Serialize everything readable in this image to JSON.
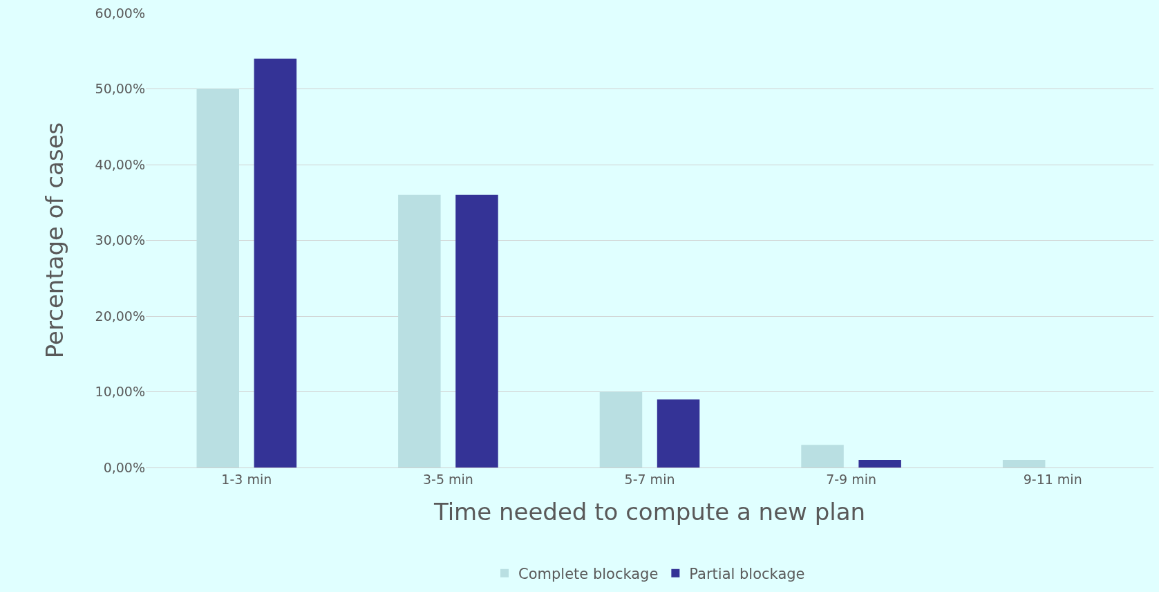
{
  "chart_data": {
    "type": "bar",
    "xlabel": "Time needed to compute a new plan",
    "ylabel": "Percentage of cases",
    "categories": [
      "1-3 min",
      "3-5 min",
      "5-7 min",
      "7-9 min",
      "9-11 min"
    ],
    "series": [
      {
        "name": "Complete blockage",
        "color": "#b9dfe2",
        "values": [
          50,
          36,
          10,
          3,
          1
        ]
      },
      {
        "name": "Partial blockage",
        "color": "#343396",
        "values": [
          54,
          36,
          9,
          1,
          null
        ]
      }
    ],
    "ylim": [
      0,
      60
    ],
    "yticks": [
      {
        "value": 0,
        "label": "0,00%"
      },
      {
        "value": 10,
        "label": "10,00%"
      },
      {
        "value": 20,
        "label": "20,00%"
      },
      {
        "value": 30,
        "label": "30,00%"
      },
      {
        "value": 40,
        "label": "40,00%"
      },
      {
        "value": 50,
        "label": "50,00%"
      },
      {
        "value": 60,
        "label": "60,00%"
      }
    ],
    "grid": "y",
    "legend": "bottom"
  }
}
